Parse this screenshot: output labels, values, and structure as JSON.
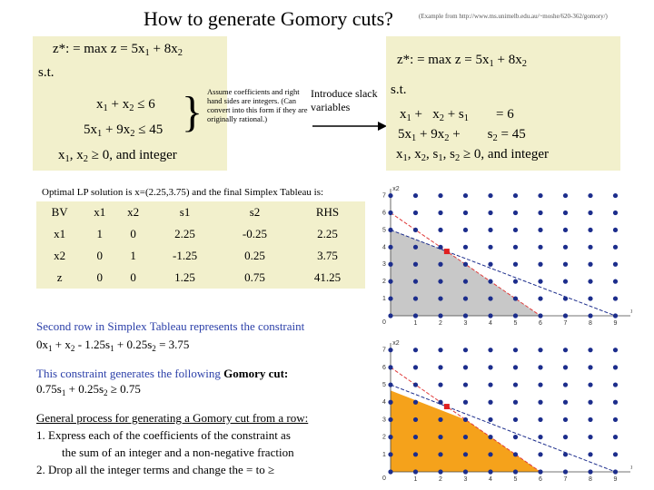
{
  "title": "How to generate Gomory cuts?",
  "source_note": "(Example from http://www.ms.unimelb.edu.au/~moshe/620-362/gomory/)",
  "left_problem": {
    "objective": "z*: = max z = 5x1 + 8x2",
    "st": "s.t.",
    "c1": "x1 + x2 ≤ 6",
    "c2": "5x1 + 9x2 ≤ 45",
    "c3": "x1, x2 ≥ 0, and integer"
  },
  "assumption_note": "Assume coefficients and right hand sides are integers. (Can convert into this form if they are originally rational.)",
  "slack_note": "Introduce slack variables",
  "right_problem": {
    "objective": "z*: = max z = 5x1 + 8x2",
    "st": "s.t.",
    "c1": "x1 + x2 + s1 = 6",
    "c2": "5x1 + 9x2 + s2 = 45",
    "c3": "x1, x2, s1, s2 ≥ 0, and integer"
  },
  "tableau_caption": "Optimal LP solution is x=(2.25,3.75) and the final Simplex Tableau is:",
  "tableau": {
    "headers": [
      "BV",
      "x1",
      "x2",
      "s1",
      "s2",
      "RHS"
    ],
    "rows": [
      [
        "x1",
        "1",
        "0",
        "2.25",
        "-0.25",
        "2.25"
      ],
      [
        "x2",
        "0",
        "1",
        "-1.25",
        "0.25",
        "3.75"
      ],
      [
        "z",
        "0",
        "0",
        "1.25",
        "0.75",
        "41.25"
      ]
    ]
  },
  "explanation": {
    "line1": "Second row in Simplex Tableau represents the constraint",
    "line2": "0x1 + x2 - 1.25s1 + 0.25s2 = 3.75",
    "line3": "This constraint generates the following Gomory cut:",
    "line4": "0.75s1 + 0.25s2 ≥ 0.75",
    "line5": "General process for generating a Gomory cut from a row:",
    "step1a": "1.  Express each of the coefficients of the constraint as",
    "step1b": "the sum of an integer and a non-negative fraction",
    "step2": "2.  Drop all the integer terms and change the = to ≥"
  },
  "plots": {
    "axis_x": "x1",
    "axis_y": "x2",
    "zero": "0",
    "x_ticks": [
      "1",
      "2",
      "3",
      "4",
      "5",
      "6",
      "7",
      "8",
      "9"
    ],
    "y_ticks": [
      "1",
      "2",
      "3",
      "4",
      "5",
      "6",
      "7"
    ],
    "colors": {
      "lp_region": "#c8c8c8",
      "cut_region": "#f5a21b",
      "dots": "#1c2d8c",
      "optimum": "#e02020",
      "c1_line": "#e03c3c",
      "c2_line": "#1c2d8c"
    }
  }
}
